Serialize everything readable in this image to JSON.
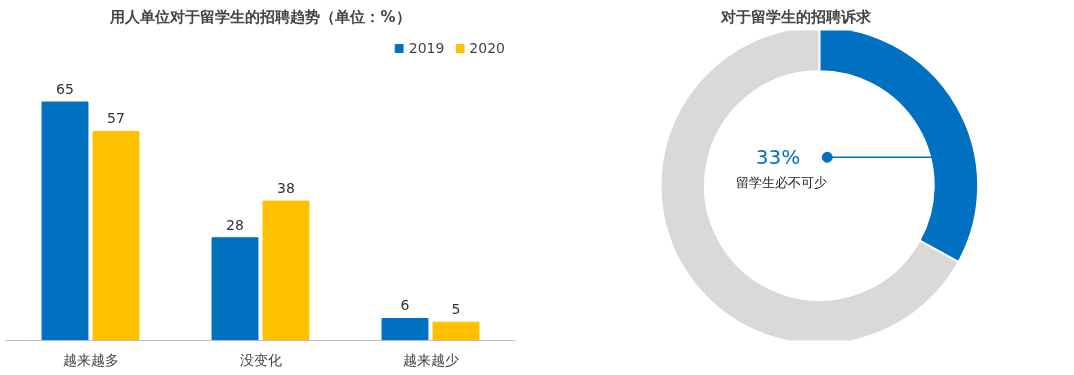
{
  "chart_data": [
    {
      "type": "bar",
      "title": "用人单位对于留学生的招聘趋势（单位：%）",
      "categories": [
        "越来越多",
        "没变化",
        "越来越少"
      ],
      "series": [
        {
          "name": "2019",
          "color": "#0070c0",
          "values": [
            65,
            28,
            6
          ]
        },
        {
          "name": "2020",
          "color": "#ffc000",
          "values": [
            57,
            38,
            5
          ]
        }
      ],
      "data_labels": true,
      "legend": "top right",
      "grid": false
    },
    {
      "type": "donut",
      "title": "对于留学生的招聘诉求",
      "categories": [
        "留学生必不可少",
        null
      ],
      "values": [
        33,
        67
      ],
      "colors": [
        "#0070c0",
        "#d9d9d9"
      ],
      "value_labels": [
        "33%",
        null
      ]
    }
  ]
}
